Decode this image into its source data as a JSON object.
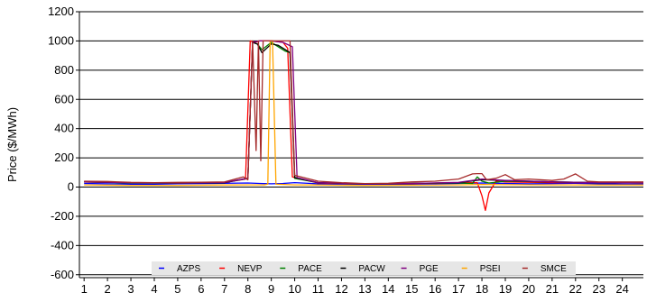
{
  "chart_data": {
    "type": "line",
    "title": "",
    "xlabel": "",
    "ylabel": "Price ($/MWh)",
    "xlim": [
      0.8,
      24.9
    ],
    "ylim": [
      -620,
      1200
    ],
    "yticks": [
      -600,
      -400,
      -200,
      0,
      200,
      400,
      600,
      800,
      1000,
      1200
    ],
    "xticks": [
      1,
      2,
      3,
      4,
      5,
      6,
      7,
      8,
      9,
      10,
      11,
      12,
      13,
      14,
      15,
      16,
      17,
      18,
      19,
      20,
      21,
      22,
      23,
      24
    ],
    "grid": "horizontal",
    "legend_position": "bottom",
    "series": [
      {
        "name": "AZPS",
        "color": "#0000ff",
        "x": [
          1,
          2,
          3,
          4,
          5,
          6,
          7,
          8,
          8.5,
          9,
          9.5,
          10,
          11,
          12,
          13,
          14,
          15,
          16,
          17,
          18,
          19,
          20,
          21,
          22,
          23,
          24,
          24.9
        ],
        "y": [
          25,
          22,
          20,
          20,
          22,
          24,
          26,
          28,
          25,
          22,
          25,
          30,
          22,
          18,
          16,
          18,
          20,
          22,
          25,
          28,
          25,
          22,
          24,
          26,
          22,
          20,
          20
        ]
      },
      {
        "name": "NEVP",
        "color": "#ff0000",
        "x": [
          1,
          3,
          5,
          7,
          7.9,
          8.1,
          8.3,
          8.5,
          9,
          9.5,
          9.7,
          9.9,
          11,
          13,
          15,
          17,
          17.8,
          18.0,
          18.15,
          18.3,
          18.6,
          19,
          21,
          23,
          24.9
        ],
        "y": [
          35,
          30,
          28,
          30,
          55,
          1000,
          990,
          1000,
          1000,
          990,
          950,
          70,
          28,
          22,
          24,
          30,
          30,
          -60,
          -160,
          -40,
          40,
          35,
          30,
          30,
          30
        ]
      },
      {
        "name": "PACE",
        "color": "#008000",
        "x": [
          1,
          3,
          5,
          7,
          8.0,
          8.2,
          8.4,
          8.6,
          9,
          9.3,
          9.6,
          9.8,
          10.0,
          11,
          13,
          15,
          17,
          17.6,
          17.8,
          18.0,
          18.3,
          19,
          21,
          23,
          24.9
        ],
        "y": [
          35,
          28,
          27,
          30,
          60,
          990,
          980,
          940,
          990,
          960,
          930,
          920,
          60,
          30,
          22,
          25,
          28,
          25,
          70,
          40,
          28,
          40,
          35,
          30,
          28
        ]
      },
      {
        "name": "PACW",
        "color": "#000000",
        "x": [
          1,
          3,
          5,
          7,
          8.0,
          8.2,
          8.4,
          8.6,
          9,
          9.3,
          9.6,
          9.8,
          10.0,
          11,
          13,
          15,
          17,
          18,
          19,
          21,
          23,
          24.9
        ],
        "y": [
          35,
          30,
          28,
          30,
          60,
          990,
          980,
          920,
          980,
          970,
          940,
          920,
          65,
          30,
          22,
          25,
          30,
          50,
          45,
          35,
          30,
          28
        ]
      },
      {
        "name": "PGE",
        "color": "#800080",
        "x": [
          1,
          3,
          5,
          7,
          8.0,
          8.2,
          8.5,
          9,
          9.5,
          9.9,
          10.1,
          11,
          13,
          15,
          17,
          18,
          19,
          21,
          23,
          24.9
        ],
        "y": [
          35,
          30,
          28,
          32,
          60,
          990,
          1000,
          1000,
          990,
          960,
          65,
          30,
          22,
          25,
          32,
          55,
          45,
          35,
          30,
          28
        ]
      },
      {
        "name": "PSEI",
        "color": "#ffa500",
        "x": [
          1,
          3,
          5,
          7,
          8,
          8.7,
          8.85,
          8.95,
          9.05,
          9.2,
          10,
          11,
          13,
          15,
          17,
          18,
          19,
          21,
          23,
          24.9
        ],
        "y": [
          15,
          12,
          12,
          14,
          15,
          15,
          20,
          1000,
          1000,
          20,
          15,
          14,
          12,
          13,
          15,
          18,
          16,
          15,
          14,
          14
        ]
      },
      {
        "name": "SMCE",
        "color": "#a52a2a",
        "x": [
          1,
          2,
          3,
          4,
          5,
          6,
          7,
          7.8,
          8.0,
          8.2,
          8.35,
          8.45,
          8.55,
          8.65,
          8.8,
          9.0,
          9.2,
          9.5,
          9.8,
          10.0,
          10.5,
          11,
          12,
          13,
          14,
          15,
          16,
          17,
          17.6,
          17.8,
          18.0,
          18.2,
          18.6,
          19,
          19.4,
          20,
          21,
          21.5,
          22,
          22.5,
          23,
          24,
          24.9
        ],
        "y": [
          40,
          38,
          32,
          30,
          32,
          33,
          35,
          70,
          50,
          1000,
          250,
          1000,
          180,
          1000,
          1000,
          1000,
          1000,
          1000,
          1000,
          80,
          60,
          40,
          30,
          24,
          26,
          35,
          40,
          55,
          90,
          92,
          92,
          50,
          60,
          85,
          50,
          55,
          45,
          55,
          90,
          40,
          35,
          35,
          35
        ]
      }
    ]
  }
}
